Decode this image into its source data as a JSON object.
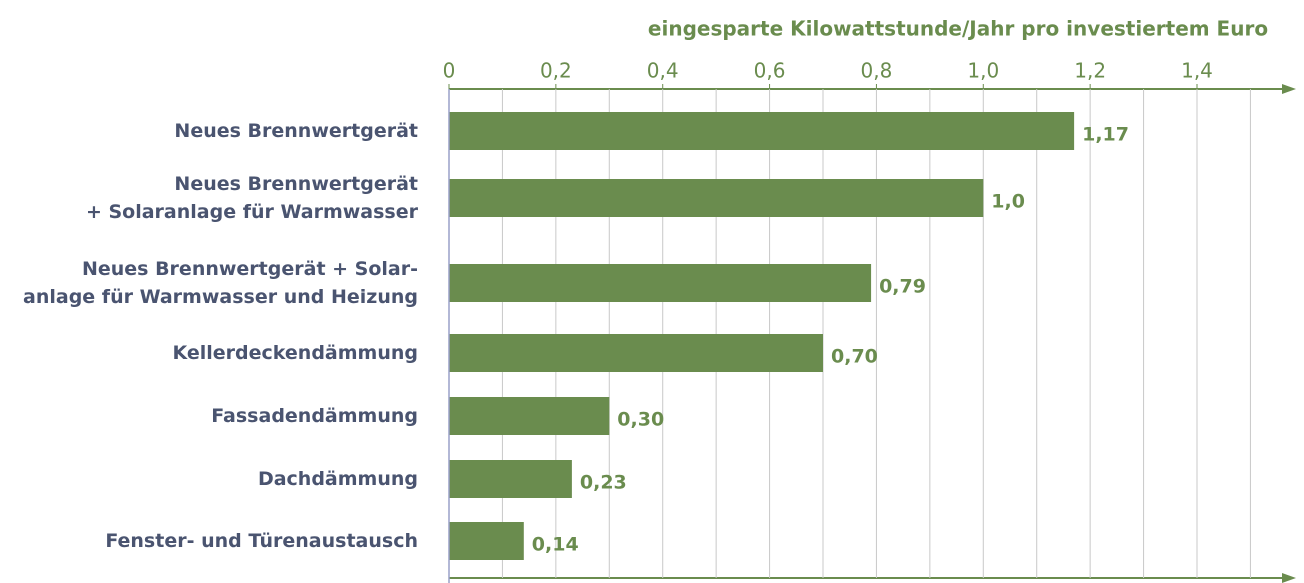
{
  "chart_data": {
    "type": "bar",
    "orientation": "horizontal",
    "x_label": "eingesparte Kilowattstunde/Jahr pro investiertem Euro",
    "categories": [
      "Neues Brennwertgerät",
      "Neues Brennwertgerät\n+ Solaranlage für Warmwasser",
      "Neues Brennwertgerät + Solar-\nanlage für Warmwasser und Heizung",
      "Kellerdeckendämmung",
      "Fassadendämmung",
      "Dachdämmung",
      "Fenster- und Türenaustausch"
    ],
    "values": [
      1.17,
      1.0,
      0.79,
      0.7,
      0.3,
      0.23,
      0.14
    ],
    "value_labels": [
      "1,17",
      "1,0",
      "0,79",
      "0,70",
      "0,30",
      "0,23",
      "0,14"
    ],
    "color": "#6a8c4e",
    "xlim": [
      0,
      1.6
    ],
    "xticks": [
      0,
      {
        "value": 0.2,
        "label": "0,2"
      },
      {
        "value": 0.4,
        "label": "0,4"
      },
      {
        "value": 0.6,
        "label": "0,6"
      },
      {
        "value": 0.8,
        "label": "0,8"
      },
      {
        "value": 1.0,
        "label": "1,0"
      },
      {
        "value": 1.2,
        "label": "1,2"
      },
      {
        "value": 1.4,
        "label": "1,4"
      }
    ],
    "xgrid": [
      0.1,
      0.2,
      0.3,
      0.4,
      0.5,
      0.6,
      0.7,
      0.8,
      0.9,
      1.0,
      1.1,
      1.2,
      1.3,
      1.4,
      1.5
    ],
    "grid": true
  }
}
